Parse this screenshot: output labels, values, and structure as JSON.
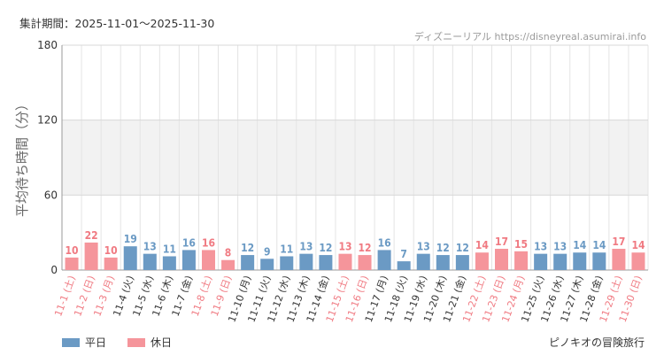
{
  "header": {
    "period": "集計期間：2025-11-01〜2025-11-30",
    "source": "ディズニーリアル https://disneyreal.asumirai.info"
  },
  "legend": {
    "weekday": "平日",
    "holiday": "休日"
  },
  "attraction": "ピノキオの冒険旅行",
  "colors": {
    "weekday": "#6b9ac4",
    "holiday": "#f5959b",
    "holiday_text": "#f07a82",
    "band": "#f2f2f2"
  },
  "chart_data": {
    "type": "bar",
    "ylabel": "平均待ち時間（分）",
    "ylim": [
      0,
      180
    ],
    "yticks": [
      0,
      60,
      120,
      180
    ],
    "shaded_band": [
      60,
      120
    ],
    "categories": [
      "11-1 (土)",
      "11-2 (日)",
      "11-3 (月)",
      "11-4 (火)",
      "11-5 (水)",
      "11-6 (木)",
      "11-7 (金)",
      "11-8 (土)",
      "11-9 (日)",
      "11-10 (月)",
      "11-11 (火)",
      "11-12 (水)",
      "11-13 (木)",
      "11-14 (金)",
      "11-15 (土)",
      "11-16 (日)",
      "11-17 (月)",
      "11-18 (火)",
      "11-19 (水)",
      "11-20 (木)",
      "11-21 (金)",
      "11-22 (土)",
      "11-23 (日)",
      "11-24 (月)",
      "11-25 (火)",
      "11-26 (水)",
      "11-27 (木)",
      "11-28 (金)",
      "11-29 (土)",
      "11-30 (日)"
    ],
    "values": [
      10,
      22,
      10,
      19,
      13,
      11,
      16,
      16,
      8,
      12,
      9,
      11,
      13,
      12,
      13,
      12,
      16,
      7,
      13,
      12,
      12,
      14,
      17,
      15,
      13,
      13,
      14,
      14,
      17,
      14
    ],
    "day_type": [
      "holiday",
      "holiday",
      "holiday",
      "weekday",
      "weekday",
      "weekday",
      "weekday",
      "holiday",
      "holiday",
      "weekday",
      "weekday",
      "weekday",
      "weekday",
      "weekday",
      "holiday",
      "holiday",
      "weekday",
      "weekday",
      "weekday",
      "weekday",
      "weekday",
      "holiday",
      "holiday",
      "holiday",
      "weekday",
      "weekday",
      "weekday",
      "weekday",
      "holiday",
      "holiday"
    ]
  }
}
